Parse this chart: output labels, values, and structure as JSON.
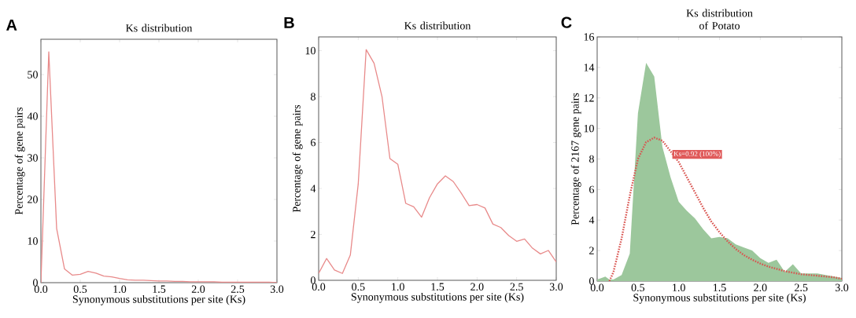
{
  "chart_data": [
    {
      "type": "line",
      "title": "Ks distribution",
      "xlabel": "Synonymous substitutions per site (Ks)",
      "ylabel": "Percentage of gene pairs",
      "annotations": [
        "A"
      ],
      "x": [
        0.0,
        0.1,
        0.2,
        0.3,
        0.4,
        0.5,
        0.6,
        0.7,
        0.8,
        0.9,
        1.0,
        1.1,
        1.2,
        1.3,
        1.4,
        1.5,
        1.6,
        1.7,
        1.8,
        1.9,
        2.0,
        2.1,
        2.2,
        2.3,
        2.4,
        2.5,
        2.6,
        2.7,
        2.8,
        2.9,
        3.0
      ],
      "series": [
        {
          "color": "#e88a8a",
          "values": [
            0,
            55.5,
            13,
            3.3,
            1.8,
            2.0,
            2.7,
            2.3,
            1.6,
            1.4,
            1.0,
            0.7,
            0.6,
            0.6,
            0.5,
            0.4,
            0.4,
            0.3,
            0.3,
            0.2,
            0.2,
            0.2,
            0.2,
            0.1,
            0.1,
            0.1,
            0.1,
            0.1,
            0.1,
            0.1,
            0
          ]
        }
      ],
      "xlim": [
        0,
        3
      ],
      "ylim": [
        0,
        58.5
      ],
      "xticks": [
        {
          "value": 0,
          "label": "0.0"
        },
        0.5,
        {
          "value": 1,
          "label": "1.0"
        },
        1.5,
        {
          "value": 2,
          "label": "2.0"
        },
        2.5,
        {
          "value": 3,
          "label": "3.0"
        }
      ],
      "yticks": [
        0,
        10,
        20,
        30,
        40,
        50
      ]
    },
    {
      "type": "line",
      "title": "Ks distribution",
      "xlabel": "Synonymous substitutions per site (Ks)",
      "ylabel": "Percentage of gene pairs",
      "annotations": [
        "B"
      ],
      "x": [
        0.0,
        0.1,
        0.2,
        0.3,
        0.4,
        0.5,
        0.6,
        0.7,
        0.8,
        0.9,
        1.0,
        1.1,
        1.2,
        1.3,
        1.4,
        1.5,
        1.6,
        1.7,
        1.8,
        1.9,
        2.0,
        2.1,
        2.2,
        2.3,
        2.4,
        2.5,
        2.6,
        2.7,
        2.8,
        2.9,
        3.0
      ],
      "series": [
        {
          "color": "#e88a8a",
          "values": [
            0.3,
            0.95,
            0.45,
            0.3,
            1.1,
            4.2,
            10.05,
            9.45,
            8.0,
            5.3,
            5.05,
            3.35,
            3.2,
            2.75,
            3.6,
            4.2,
            4.55,
            4.3,
            3.8,
            3.25,
            3.3,
            3.15,
            2.45,
            2.3,
            1.95,
            1.7,
            1.8,
            1.4,
            1.15,
            1.3,
            0.8
          ]
        }
      ],
      "xlim": [
        0,
        3
      ],
      "ylim": [
        0,
        10.6
      ],
      "xticks": [
        {
          "value": 0,
          "label": "0.0"
        },
        0.5,
        {
          "value": 1,
          "label": "1.0"
        },
        1.5,
        {
          "value": 2,
          "label": "2.0"
        },
        2.5,
        {
          "value": 3,
          "label": "3.0"
        }
      ],
      "yticks": [
        0,
        2,
        4,
        6,
        8,
        10
      ]
    },
    {
      "type": "area",
      "title": "Ks distribution of Potato",
      "xlabel": "Synonymous substitutions per site (Ks)",
      "ylabel": "Percentage of 2167 gene pairs",
      "annotations": [
        "C",
        {
          "text": "Ks=0.92 (100%)",
          "x": 0.92,
          "y": 8.3
        }
      ],
      "x": [
        0.0,
        0.1,
        0.15,
        0.2,
        0.3,
        0.4,
        0.5,
        0.6,
        0.7,
        0.8,
        0.9,
        1.0,
        1.1,
        1.2,
        1.3,
        1.4,
        1.5,
        1.6,
        1.7,
        1.8,
        1.9,
        2.0,
        2.1,
        2.2,
        2.3,
        2.4,
        2.5,
        2.6,
        2.7,
        2.8,
        2.9,
        3.0
      ],
      "series": [
        {
          "type": "area",
          "color": "#9cc79c",
          "values": [
            0.1,
            0.3,
            0.1,
            0.1,
            0.4,
            1.8,
            11,
            14.3,
            13.4,
            8.8,
            6.8,
            5.2,
            4.6,
            4.1,
            3.4,
            2.8,
            2.9,
            2.8,
            2.4,
            2.2,
            2.0,
            1.5,
            1.2,
            1.4,
            0.6,
            1.1,
            0.5,
            0.5,
            0.5,
            0.4,
            0.3,
            0.2
          ]
        },
        {
          "type": "line",
          "color": "#d9534f",
          "line_style": "dotted",
          "x": [
            0.15,
            0.2,
            0.3,
            0.4,
            0.5,
            0.6,
            0.7,
            0.8,
            0.9,
            1.0,
            1.1,
            1.2,
            1.3,
            1.4,
            1.5,
            1.6,
            1.7,
            1.8,
            1.9,
            2.0,
            2.1,
            2.2,
            2.3,
            2.4,
            2.5,
            2.6,
            2.7,
            2.8,
            2.9,
            3.0
          ],
          "values": [
            0,
            0.6,
            2.8,
            5.6,
            8.0,
            9.1,
            9.4,
            9.2,
            8.5,
            7.8,
            6.8,
            5.8,
            4.8,
            3.9,
            3.2,
            2.6,
            2.1,
            1.7,
            1.4,
            1.15,
            0.95,
            0.8,
            0.65,
            0.55,
            0.45,
            0.4,
            0.35,
            0.3,
            0.25,
            0.15
          ]
        }
      ],
      "xlim": [
        0,
        3
      ],
      "ylim": [
        0,
        16
      ],
      "xticks": [
        {
          "value": 0,
          "label": "0.0"
        },
        0.5,
        {
          "value": 1,
          "label": "1.0"
        },
        1.5,
        {
          "value": 2,
          "label": "2.0"
        },
        2.5,
        {
          "value": 3,
          "label": "3.0"
        }
      ],
      "yticks": [
        0,
        2,
        4,
        6,
        8,
        10,
        12,
        14,
        16
      ]
    }
  ]
}
